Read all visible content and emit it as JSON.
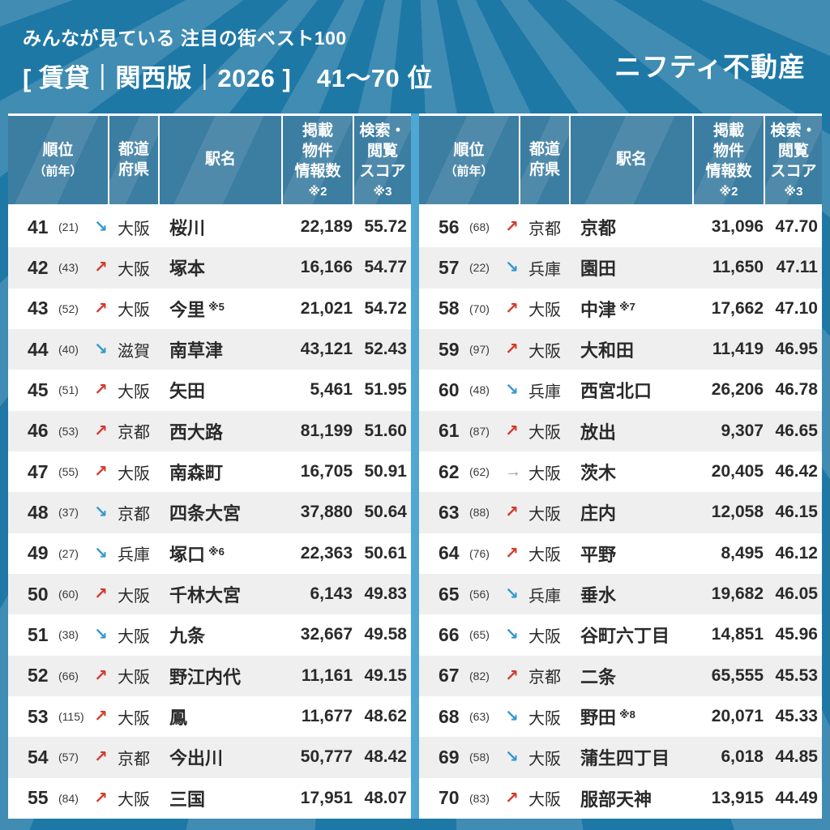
{
  "header": {
    "subtitle": "みんなが見ている 注目の街ベスト100",
    "title": "[ 賃貸｜関西版｜2026 ]　41〜70 位",
    "logo": "ニフティ不動産"
  },
  "table": {
    "columns": [
      {
        "main": [
          "順位"
        ],
        "small": "（前年）"
      },
      {
        "main": [
          "都道",
          "府県"
        ],
        "small": ""
      },
      {
        "main": [
          "駅名"
        ],
        "small": ""
      },
      {
        "main": [
          "掲載",
          "物件",
          "情報数"
        ],
        "small": "※2"
      },
      {
        "main": [
          "検索・",
          "閲覧",
          "スコア"
        ],
        "small": "※3"
      }
    ]
  },
  "trend": {
    "icons": {
      "up": "↗",
      "down": "↘",
      "flat": "→"
    },
    "colors": {
      "up": "#d2392b",
      "down": "#3398cc",
      "flat": "#9e9e9e"
    }
  },
  "colors": {
    "background": "#1e78a6",
    "header_cell": "#3c7da2",
    "row_alt": "#efefef",
    "divider": "#4fa8d4"
  },
  "chart_data": {
    "type": "table",
    "title": "みんなが見ている 注目の街ベスト100 [賃貸｜関西版｜2026] 41〜70位",
    "columns": [
      "順位",
      "前年順位",
      "前年比トレンド",
      "都道府県",
      "駅名",
      "注釈",
      "掲載物件情報数 ※2",
      "検索・閲覧スコア ※3"
    ],
    "rows": [
      {
        "rank": "41",
        "prev": "(21)",
        "trend": "down",
        "pref": "大阪",
        "station": "桜川",
        "note": "",
        "listings": "22,189",
        "score": "55.72"
      },
      {
        "rank": "42",
        "prev": "(43)",
        "trend": "up",
        "pref": "大阪",
        "station": "塚本",
        "note": "",
        "listings": "16,166",
        "score": "54.77"
      },
      {
        "rank": "43",
        "prev": "(52)",
        "trend": "up",
        "pref": "大阪",
        "station": "今里",
        "note": "※5",
        "listings": "21,021",
        "score": "54.72"
      },
      {
        "rank": "44",
        "prev": "(40)",
        "trend": "down",
        "pref": "滋賀",
        "station": "南草津",
        "note": "",
        "listings": "43,121",
        "score": "52.43"
      },
      {
        "rank": "45",
        "prev": "(51)",
        "trend": "up",
        "pref": "大阪",
        "station": "矢田",
        "note": "",
        "listings": "5,461",
        "score": "51.95"
      },
      {
        "rank": "46",
        "prev": "(53)",
        "trend": "up",
        "pref": "京都",
        "station": "西大路",
        "note": "",
        "listings": "81,199",
        "score": "51.60"
      },
      {
        "rank": "47",
        "prev": "(55)",
        "trend": "up",
        "pref": "大阪",
        "station": "南森町",
        "note": "",
        "listings": "16,705",
        "score": "50.91"
      },
      {
        "rank": "48",
        "prev": "(37)",
        "trend": "down",
        "pref": "京都",
        "station": "四条大宮",
        "note": "",
        "listings": "37,880",
        "score": "50.64"
      },
      {
        "rank": "49",
        "prev": "(27)",
        "trend": "down",
        "pref": "兵庫",
        "station": "塚口",
        "note": "※6",
        "listings": "22,363",
        "score": "50.61"
      },
      {
        "rank": "50",
        "prev": "(60)",
        "trend": "up",
        "pref": "大阪",
        "station": "千林大宮",
        "note": "",
        "listings": "6,143",
        "score": "49.83"
      },
      {
        "rank": "51",
        "prev": "(38)",
        "trend": "down",
        "pref": "大阪",
        "station": "九条",
        "note": "",
        "listings": "32,667",
        "score": "49.58"
      },
      {
        "rank": "52",
        "prev": "(66)",
        "trend": "up",
        "pref": "大阪",
        "station": "野江内代",
        "note": "",
        "listings": "11,161",
        "score": "49.15"
      },
      {
        "rank": "53",
        "prev": "(115)",
        "trend": "up",
        "pref": "大阪",
        "station": "鳳",
        "note": "",
        "listings": "11,677",
        "score": "48.62"
      },
      {
        "rank": "54",
        "prev": "(57)",
        "trend": "up",
        "pref": "京都",
        "station": "今出川",
        "note": "",
        "listings": "50,777",
        "score": "48.42"
      },
      {
        "rank": "55",
        "prev": "(84)",
        "trend": "up",
        "pref": "大阪",
        "station": "三国",
        "note": "",
        "listings": "17,951",
        "score": "48.07"
      },
      {
        "rank": "56",
        "prev": "(68)",
        "trend": "up",
        "pref": "京都",
        "station": "京都",
        "note": "",
        "listings": "31,096",
        "score": "47.70"
      },
      {
        "rank": "57",
        "prev": "(22)",
        "trend": "down",
        "pref": "兵庫",
        "station": "園田",
        "note": "",
        "listings": "11,650",
        "score": "47.11"
      },
      {
        "rank": "58",
        "prev": "(70)",
        "trend": "up",
        "pref": "大阪",
        "station": "中津",
        "note": "※7",
        "listings": "17,662",
        "score": "47.10"
      },
      {
        "rank": "59",
        "prev": "(97)",
        "trend": "up",
        "pref": "大阪",
        "station": "大和田",
        "note": "",
        "listings": "11,419",
        "score": "46.95"
      },
      {
        "rank": "60",
        "prev": "(48)",
        "trend": "down",
        "pref": "兵庫",
        "station": "西宮北口",
        "note": "",
        "listings": "26,206",
        "score": "46.78"
      },
      {
        "rank": "61",
        "prev": "(87)",
        "trend": "up",
        "pref": "大阪",
        "station": "放出",
        "note": "",
        "listings": "9,307",
        "score": "46.65"
      },
      {
        "rank": "62",
        "prev": "(62)",
        "trend": "flat",
        "pref": "大阪",
        "station": "茨木",
        "note": "",
        "listings": "20,405",
        "score": "46.42"
      },
      {
        "rank": "63",
        "prev": "(88)",
        "trend": "up",
        "pref": "大阪",
        "station": "庄内",
        "note": "",
        "listings": "12,058",
        "score": "46.15"
      },
      {
        "rank": "64",
        "prev": "(76)",
        "trend": "up",
        "pref": "大阪",
        "station": "平野",
        "note": "",
        "listings": "8,495",
        "score": "46.12"
      },
      {
        "rank": "65",
        "prev": "(56)",
        "trend": "down",
        "pref": "兵庫",
        "station": "垂水",
        "note": "",
        "listings": "19,682",
        "score": "46.05"
      },
      {
        "rank": "66",
        "prev": "(65)",
        "trend": "down",
        "pref": "大阪",
        "station": "谷町六丁目",
        "note": "",
        "listings": "14,851",
        "score": "45.96"
      },
      {
        "rank": "67",
        "prev": "(82)",
        "trend": "up",
        "pref": "京都",
        "station": "二条",
        "note": "",
        "listings": "65,555",
        "score": "45.53"
      },
      {
        "rank": "68",
        "prev": "(63)",
        "trend": "down",
        "pref": "大阪",
        "station": "野田",
        "note": "※8",
        "listings": "20,071",
        "score": "45.33"
      },
      {
        "rank": "69",
        "prev": "(58)",
        "trend": "down",
        "pref": "大阪",
        "station": "蒲生四丁目",
        "note": "",
        "listings": "6,018",
        "score": "44.85"
      },
      {
        "rank": "70",
        "prev": "(83)",
        "trend": "up",
        "pref": "大阪",
        "station": "服部天神",
        "note": "",
        "listings": "13,915",
        "score": "44.49"
      }
    ]
  }
}
